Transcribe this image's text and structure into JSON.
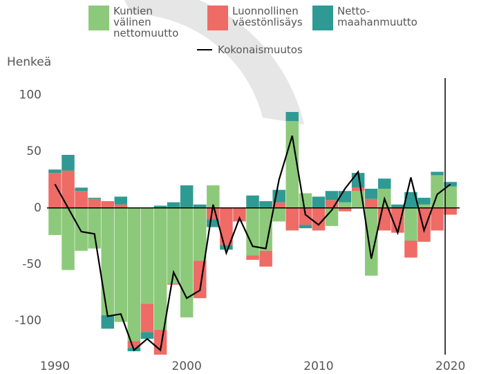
{
  "chart_data": {
    "type": "stacked-bar-line",
    "y_label": "Henkeä",
    "x": [
      1990,
      1991,
      1992,
      1993,
      1994,
      1995,
      1996,
      1997,
      1998,
      1999,
      2000,
      2001,
      2002,
      2003,
      2004,
      2005,
      2006,
      2007,
      2008,
      2009,
      2010,
      2011,
      2012,
      2013,
      2014,
      2015,
      2016,
      2017,
      2018,
      2019,
      2020
    ],
    "xlim": [
      1989.4,
      2020.7
    ],
    "xticks": [
      1990,
      2000,
      2010,
      2020
    ],
    "ylim": [
      -130,
      115
    ],
    "yticks": [
      -100,
      -50,
      0,
      50,
      100
    ],
    "vline_x": 2019.6,
    "series": [
      {
        "name": "Kuntien välinen nettomuutto",
        "color": "#8dc97a",
        "values": [
          -24,
          -55,
          -38,
          -36,
          -95,
          -101,
          -118,
          -85,
          -108,
          -67,
          -97,
          -47,
          20,
          0,
          0,
          -42,
          -38,
          -12,
          77,
          13,
          0,
          -16,
          5,
          15,
          -60,
          17,
          0,
          -29,
          3,
          29,
          19
        ]
      },
      {
        "name": "Luonnollinen väestönlisäys",
        "color": "#ee6b66",
        "values": [
          31,
          33,
          15,
          8,
          6,
          3,
          -6,
          -25,
          -22,
          -1,
          0,
          -33,
          -10,
          -33,
          -12,
          -4,
          -14,
          5,
          -20,
          -15,
          -20,
          7,
          -3,
          3,
          8,
          -20,
          -22,
          -15,
          -30,
          -20,
          -6
        ]
      },
      {
        "name": "Netto-maahanmuutto",
        "color": "#2f9a93",
        "values": [
          3,
          14,
          3,
          1,
          -12,
          7,
          -3,
          -6,
          2,
          5,
          20,
          3,
          -7,
          -4,
          0,
          11,
          6,
          11,
          8,
          -3,
          10,
          8,
          10,
          13,
          9,
          9,
          3,
          14,
          6,
          3,
          4
        ]
      }
    ],
    "line": {
      "name": "Kokonaismuutos",
      "color": "#000000",
      "values": [
        21,
        0,
        -21,
        -23,
        -96,
        -94,
        -126,
        -116,
        -126,
        -57,
        -80,
        -73,
        3,
        -40,
        -9,
        -34,
        -36,
        25,
        64,
        -6,
        -15,
        -2,
        17,
        32,
        -45,
        8,
        -22,
        27,
        -20,
        12,
        21
      ]
    }
  }
}
